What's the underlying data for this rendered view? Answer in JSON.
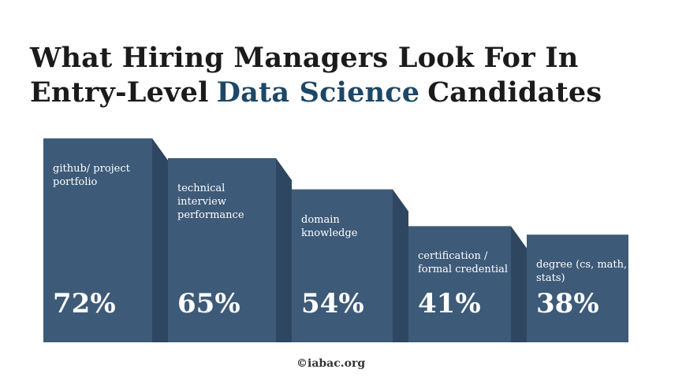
{
  "chart_data": {
    "type": "bar",
    "title_parts": [
      "What Hiring Managers Look For In Entry-Level",
      "Data Science",
      "Candidates"
    ],
    "categories": [
      "github/ project portfolio",
      "technical interview performance",
      "domain knowledge",
      "certification / formal credential",
      "degree (cs, math, stats)"
    ],
    "values": [
      72,
      65,
      54,
      41,
      38
    ],
    "value_labels": [
      "72%",
      "65%",
      "54%",
      "41%",
      "38%"
    ],
    "color": "#3d5a78",
    "source": "©iabac.org"
  }
}
